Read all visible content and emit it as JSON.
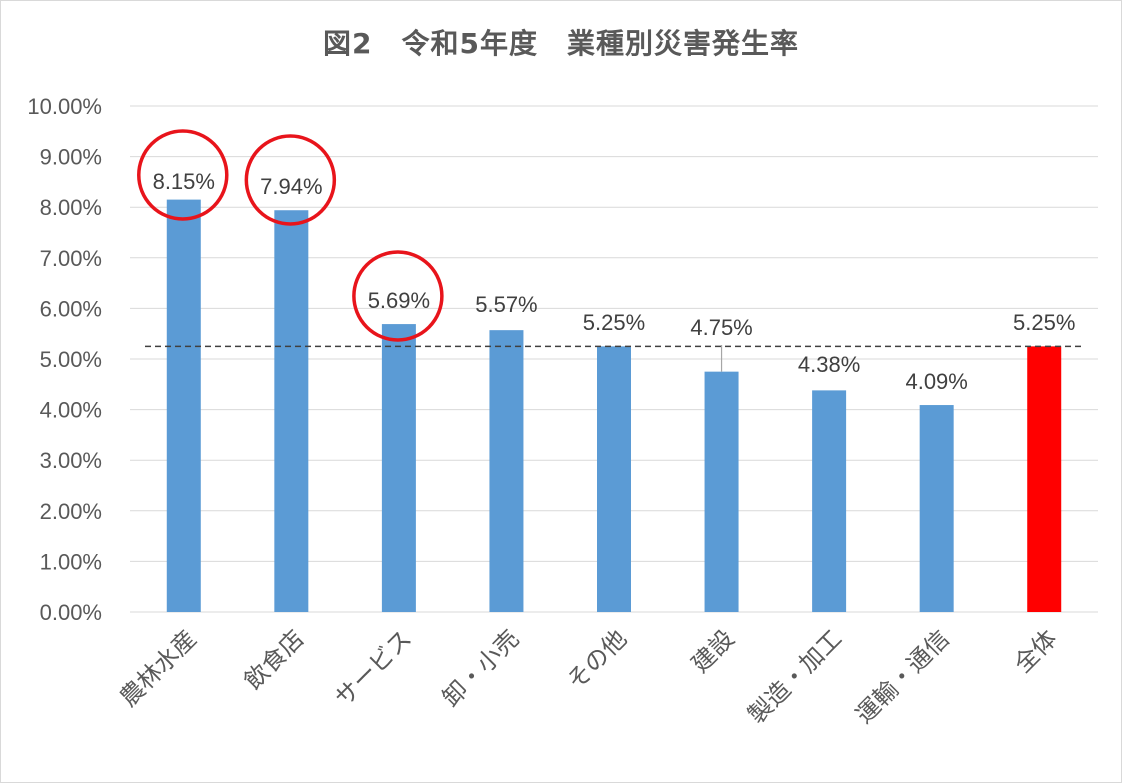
{
  "chart_data": {
    "type": "bar",
    "title": "図2　令和5年度　業種別災害発生率",
    "xlabel": "",
    "ylabel": "",
    "categories": [
      "農林水産",
      "飲食店",
      "サービス",
      "卸・小売",
      "その他",
      "建設",
      "製造・加工",
      "運輸・通信",
      "全体"
    ],
    "series": [
      {
        "values": [
          8.15,
          7.94,
          5.69,
          5.57,
          5.25,
          4.75,
          4.38,
          4.09,
          5.25
        ],
        "labels": [
          "8.15%",
          "7.94%",
          "5.69%",
          "5.57%",
          "5.25%",
          "4.75%",
          "4.38%",
          "4.09%",
          "5.25%"
        ]
      }
    ],
    "ylim": [
      0,
      10
    ],
    "yticks": [
      "0.00%",
      "1.00%",
      "2.00%",
      "3.00%",
      "4.00%",
      "5.00%",
      "6.00%",
      "7.00%",
      "8.00%",
      "9.00%",
      "10.00%"
    ],
    "grid": true,
    "legend": "none",
    "reference_line": {
      "value": 5.25,
      "style": "dashed"
    },
    "highlighted_categories": [
      "農林水産",
      "飲食店",
      "サービス"
    ],
    "colors": {
      "bar": "#5b9bd5",
      "total_bar": "#ff0000",
      "circle": "#e8141b",
      "grid": "#d9d9d9",
      "text": "#595959"
    }
  }
}
